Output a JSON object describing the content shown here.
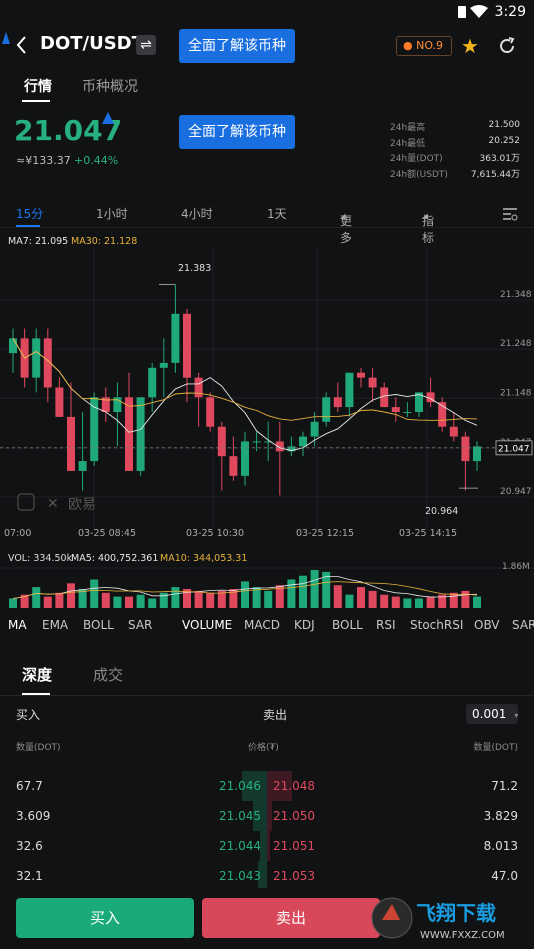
{
  "status": {
    "time": "3:29"
  },
  "header": {
    "pair": "DOT/USDT",
    "swap_icon": "⇌",
    "learn_label": "全面了解该币种",
    "rank_label": "NO.9"
  },
  "tabs": {
    "market": "行情",
    "overview": "币种概况"
  },
  "ticker": {
    "price": "21.047",
    "cny": "≈¥133.37",
    "change": "+0.44%",
    "stats": [
      {
        "k": "24h最高",
        "v": "21.500"
      },
      {
        "k": "24h最低",
        "v": "20.252"
      },
      {
        "k": "24h量(DOT)",
        "v": "363.01万"
      },
      {
        "k": "24h额(USDT)",
        "v": "7,615.44万"
      }
    ]
  },
  "intervals": [
    "15分",
    "1小时",
    "4小时",
    "1天",
    "更多",
    "指标"
  ],
  "chart": {
    "ma7_label": "MA7: 21.095",
    "ma30_label": "MA30: 21.128",
    "y_ticks": [
      "21.348",
      "21.248",
      "21.148",
      "21.047",
      "20.947"
    ],
    "x_ticks": [
      "07:00",
      "03-25 08:45",
      "03-25 10:30",
      "03-25 12:15",
      "03-25 14:15"
    ],
    "high_label": "21.383",
    "low_label": "20.964",
    "current_label": "21.047",
    "watermark": "欧易",
    "vol_label": "VOL: 334.50k",
    "ma5_label": "MA5: 400,752.361",
    "ma10_label": "MA10: 344,053.31",
    "vol_max": "1.86M",
    "colors": {
      "up": "#1fa97b",
      "down": "#e0485e",
      "ma7": "#e8e8e8",
      "ma30": "#e7b13a"
    }
  },
  "chart_data": {
    "type": "candlestick",
    "y_range": [
      20.9,
      21.45
    ],
    "candles": [
      [
        21.24,
        21.29,
        21.2,
        21.27
      ],
      [
        21.27,
        21.29,
        21.17,
        21.19
      ],
      [
        21.19,
        21.29,
        21.16,
        21.27
      ],
      [
        21.27,
        21.29,
        21.14,
        21.17
      ],
      [
        21.17,
        21.19,
        21.11,
        21.11
      ],
      [
        21.11,
        21.18,
        21.0,
        21.0
      ],
      [
        21.0,
        21.12,
        20.96,
        21.02
      ],
      [
        21.02,
        21.16,
        21.01,
        21.15
      ],
      [
        21.15,
        21.17,
        21.1,
        21.12
      ],
      [
        21.12,
        21.18,
        21.05,
        21.15
      ],
      [
        21.15,
        21.2,
        21.0,
        21.0
      ],
      [
        21.0,
        21.15,
        20.99,
        21.15
      ],
      [
        21.15,
        21.22,
        21.12,
        21.21
      ],
      [
        21.21,
        21.27,
        21.15,
        21.22
      ],
      [
        21.22,
        21.38,
        21.2,
        21.32
      ],
      [
        21.32,
        21.33,
        21.14,
        21.19
      ],
      [
        21.19,
        21.2,
        21.09,
        21.15
      ],
      [
        21.15,
        21.16,
        21.08,
        21.09
      ],
      [
        21.09,
        21.1,
        20.96,
        21.03
      ],
      [
        21.03,
        21.07,
        20.98,
        20.99
      ],
      [
        20.99,
        21.08,
        20.97,
        21.06
      ],
      [
        21.06,
        21.08,
        21.04,
        21.06
      ],
      [
        21.06,
        21.1,
        21.02,
        21.06
      ],
      [
        21.06,
        21.1,
        20.95,
        21.04
      ],
      [
        21.04,
        21.07,
        21.03,
        21.05
      ],
      [
        21.05,
        21.08,
        21.03,
        21.07
      ],
      [
        21.07,
        21.12,
        21.05,
        21.1
      ],
      [
        21.1,
        21.16,
        21.09,
        21.15
      ],
      [
        21.15,
        21.18,
        21.12,
        21.13
      ],
      [
        21.13,
        21.2,
        21.11,
        21.2
      ],
      [
        21.2,
        21.21,
        21.17,
        21.19
      ],
      [
        21.19,
        21.21,
        21.14,
        21.17
      ],
      [
        21.17,
        21.18,
        21.13,
        21.13
      ],
      [
        21.13,
        21.15,
        21.1,
        21.12
      ],
      [
        21.12,
        21.14,
        21.11,
        21.12
      ],
      [
        21.12,
        21.16,
        21.11,
        21.16
      ],
      [
        21.16,
        21.19,
        21.13,
        21.14
      ],
      [
        21.14,
        21.15,
        21.08,
        21.09
      ],
      [
        21.09,
        21.12,
        21.06,
        21.07
      ],
      [
        21.07,
        21.08,
        20.96,
        21.02
      ],
      [
        21.02,
        21.06,
        21.0,
        21.05
      ]
    ],
    "volumes": [
      0.25,
      0.35,
      0.55,
      0.3,
      0.4,
      0.65,
      0.5,
      0.75,
      0.4,
      0.3,
      0.3,
      0.35,
      0.25,
      0.4,
      0.55,
      0.5,
      0.45,
      0.4,
      0.45,
      0.5,
      0.7,
      0.55,
      0.45,
      0.6,
      0.75,
      0.85,
      1.0,
      0.95,
      0.6,
      0.35,
      0.55,
      0.45,
      0.35,
      0.3,
      0.25,
      0.25,
      0.3,
      0.35,
      0.4,
      0.45,
      0.3
    ],
    "volume_max": "1.86M"
  },
  "indicators": [
    "MA",
    "EMA",
    "BOLL",
    "SAR",
    "VOLUME",
    "MACD",
    "KDJ",
    "BOLL",
    "RSI",
    "StochRSI",
    "OBV",
    "SAR"
  ],
  "depth": {
    "tab_depth": "深度",
    "tab_trades": "成交",
    "buy_label": "买入",
    "sell_label": "卖出",
    "precision": "0.001",
    "col_qty_left": "数量(DOT)",
    "col_price": "价格(₮)",
    "col_qty_right": "数量(DOT)",
    "rows": [
      {
        "bq": "67.7",
        "bp": "21.046",
        "ap": "21.048",
        "aq": "71.2",
        "bf": 0.25,
        "af": 0.25
      },
      {
        "bq": "3.609",
        "bp": "21.045",
        "ap": "21.050",
        "aq": "3.829",
        "bf": 0.14,
        "af": 0.05
      },
      {
        "bq": "32.6",
        "bp": "21.044",
        "ap": "21.051",
        "aq": "8.013",
        "bf": 0.07,
        "af": 0.03
      },
      {
        "bq": "32.1",
        "bp": "21.043",
        "ap": "21.053",
        "aq": "47.0",
        "bf": 0.09,
        "af": 0.0
      }
    ]
  },
  "actions": {
    "buy": "买入",
    "sell": "卖出"
  },
  "watermark_site": {
    "brand": "飞翔下载",
    "url": "WWW.FXXZ.COM"
  }
}
